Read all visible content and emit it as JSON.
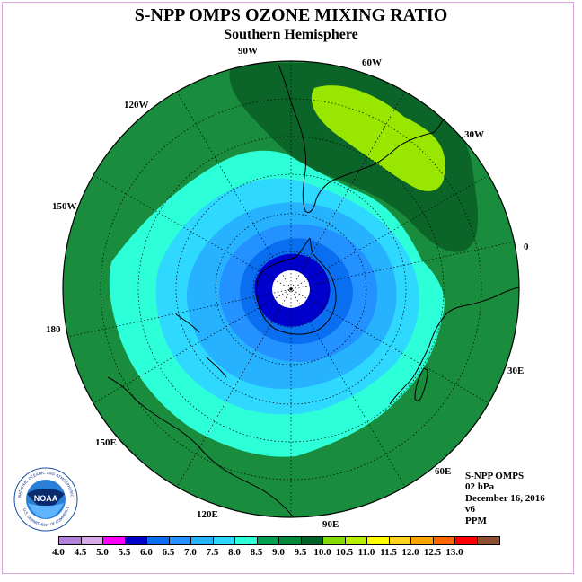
{
  "title": "S-NPP OMPS OZONE MIXING RATIO",
  "subtitle": "Southern Hemisphere",
  "longitude_labels": {
    "lon_90w": "90W",
    "lon_60w": "60W",
    "lon_30w": "30W",
    "lon_0": "0",
    "lon_30e": "30E",
    "lon_60e": "60E",
    "lon_90e": "90E",
    "lon_120e": "120E",
    "lon_150e": "150E",
    "lon_180": "180",
    "lon_150w": "150W",
    "lon_120w": "120W"
  },
  "info": {
    "instrument": "S-NPP OMPS",
    "level": "02 hPa",
    "date": "December 16, 2016",
    "version": "v6",
    "units": "PPM"
  },
  "logo": {
    "text": "NOAA",
    "ring_text": "NATIONAL OCEANIC AND ATMOSPHERIC ADMINISTRATION",
    "ring_text_bottom": "U.S. DEPARTMENT OF COMMERCE"
  },
  "colorbar": {
    "colors": [
      "#b27fd9",
      "#d9a8e6",
      "#ff00ff",
      "#0000cc",
      "#0a6ef0",
      "#2391ff",
      "#26b2ff",
      "#2ed8ff",
      "#2dffd8",
      "#00a050",
      "#008a3a",
      "#006428",
      "#86dc00",
      "#b8f000",
      "#ffff00",
      "#ffd21e",
      "#ffa500",
      "#ff6600",
      "#ff0000",
      "#8c5030"
    ],
    "ticks": [
      "4.0",
      "4.5",
      "5.0",
      "5.5",
      "6.0",
      "6.5",
      "7.0",
      "7.5",
      "8.0",
      "8.5",
      "9.0",
      "9.5",
      "10.0",
      "10.5",
      "11.0",
      "11.5",
      "12.0",
      "12.5",
      "13.0"
    ]
  },
  "map_colors": {
    "background": "#1a8c3e",
    "dark_band": "#0b6428",
    "high": "#99e600",
    "level_8_0": "#2dffd8",
    "level_7_5": "#2ed8ff",
    "level_7_0": "#26b2ff",
    "level_6_5": "#2391ff",
    "level_6_0": "#0a6ef0",
    "level_5_5": "#0000cc",
    "pole": "#ffffff"
  }
}
